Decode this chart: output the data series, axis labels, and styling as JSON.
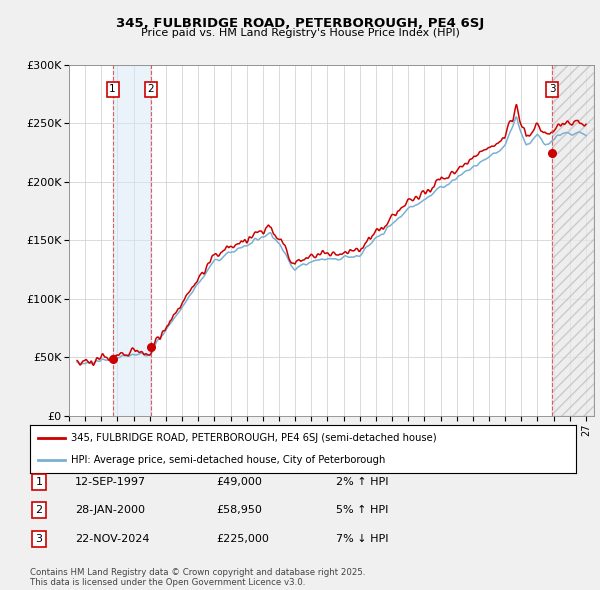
{
  "title_line1": "345, FULBRIDGE ROAD, PETERBOROUGH, PE4 6SJ",
  "title_line2": "Price paid vs. HM Land Registry's House Price Index (HPI)",
  "ylim": [
    0,
    300000
  ],
  "xlim_start": 1995.4,
  "xlim_end": 2027.5,
  "yticks": [
    0,
    50000,
    100000,
    150000,
    200000,
    250000,
    300000
  ],
  "ytick_labels": [
    "£0",
    "£50K",
    "£100K",
    "£150K",
    "£200K",
    "£250K",
    "£300K"
  ],
  "transaction1_date": 1997.7,
  "transaction1_price": 49000,
  "transaction2_date": 2000.08,
  "transaction2_price": 58950,
  "transaction3_date": 2024.9,
  "transaction3_price": 225000,
  "red_line_color": "#cc0000",
  "blue_line_color": "#7ab0d4",
  "marker_color": "#cc0000",
  "background_color": "#f0f0f0",
  "plot_bg_color": "#ffffff",
  "grid_color": "#cccccc",
  "vline_color": "#dd4444",
  "shade_color": "#d6e8f5",
  "legend_line1": "345, FULBRIDGE ROAD, PETERBOROUGH, PE4 6SJ (semi-detached house)",
  "legend_line2": "HPI: Average price, semi-detached house, City of Peterborough",
  "table_rows": [
    [
      "1",
      "12-SEP-1997",
      "£49,000",
      "2% ↑ HPI"
    ],
    [
      "2",
      "28-JAN-2000",
      "£58,950",
      "5% ↑ HPI"
    ],
    [
      "3",
      "22-NOV-2024",
      "£225,000",
      "7% ↓ HPI"
    ]
  ],
  "footnote": "Contains HM Land Registry data © Crown copyright and database right 2025.\nThis data is licensed under the Open Government Licence v3.0.",
  "xtick_years": [
    1995,
    1996,
    1997,
    1998,
    1999,
    2000,
    2001,
    2002,
    2003,
    2004,
    2005,
    2006,
    2007,
    2008,
    2009,
    2010,
    2011,
    2012,
    2013,
    2014,
    2015,
    2016,
    2017,
    2018,
    2019,
    2020,
    2021,
    2022,
    2023,
    2024,
    2025,
    2026,
    2027
  ]
}
